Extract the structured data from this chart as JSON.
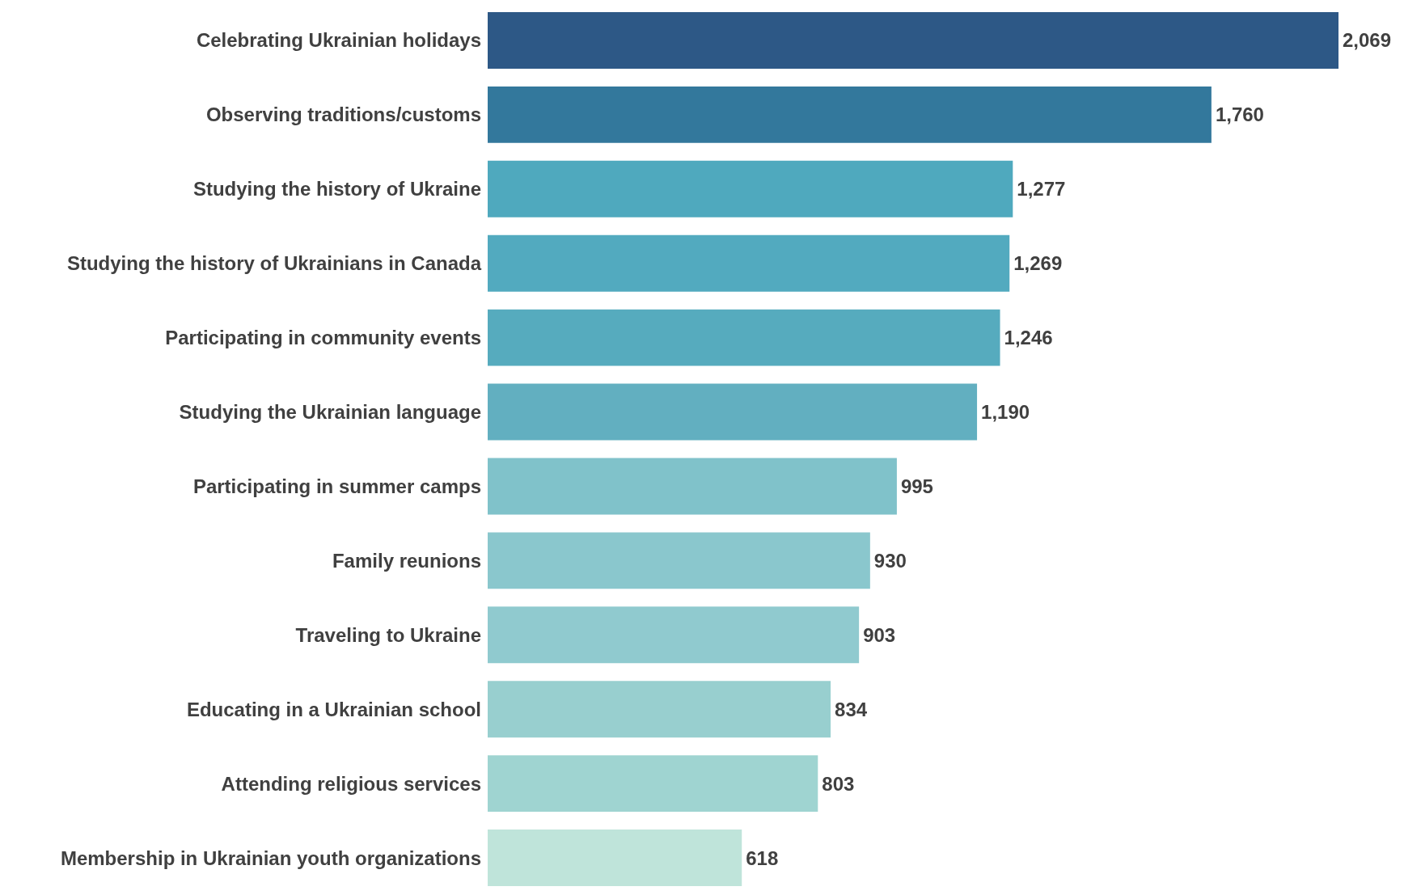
{
  "chart_data": {
    "type": "bar",
    "orientation": "horizontal",
    "value_labels": [
      "2,069",
      "1,760",
      "1,277",
      "1,269",
      "1,246",
      "1,190",
      "995",
      "930",
      "903",
      "834",
      "803",
      "618"
    ],
    "categories": [
      "Celebrating Ukrainian holidays",
      "Observing traditions/customs",
      "Studying the history of Ukraine",
      "Studying the history of Ukrainians in Canada",
      "Participating in community events",
      "Studying the Ukrainian language",
      "Participating in summer camps",
      "Family reunions",
      "Traveling to Ukraine",
      "Educating in a Ukrainian school",
      "Attending religious services",
      "Membership in Ukrainian youth organizations"
    ],
    "values": [
      2069,
      1760,
      1277,
      1269,
      1246,
      1190,
      995,
      930,
      903,
      834,
      803,
      618
    ],
    "colors": [
      "#2d5886",
      "#33789c",
      "#4fa9be",
      "#52aabf",
      "#56abbe",
      "#62afc0",
      "#80c2ca",
      "#8ac7cd",
      "#90cacf",
      "#98cfcf",
      "#9fd4d1",
      "#bfe4da"
    ]
  }
}
